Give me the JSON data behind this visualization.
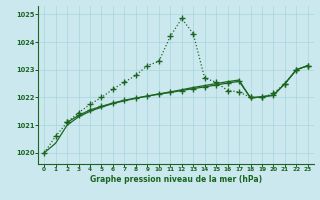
{
  "xlabel": "Graphe pression niveau de la mer (hPa)",
  "bg_color": "#cce8ef",
  "grid_color": "#a8d4dc",
  "line_color": "#1a6620",
  "x_ticks": [
    0,
    1,
    2,
    3,
    4,
    5,
    6,
    7,
    8,
    9,
    10,
    11,
    12,
    13,
    14,
    15,
    16,
    17,
    18,
    19,
    20,
    21,
    22,
    23
  ],
  "ylim": [
    1019.6,
    1025.3
  ],
  "yticks": [
    1020,
    1021,
    1022,
    1023,
    1024,
    1025
  ],
  "series1_x": [
    0,
    1,
    2,
    3,
    4,
    5,
    6,
    7,
    8,
    9,
    10,
    11,
    12,
    13,
    14,
    15,
    16,
    17,
    18,
    19,
    20,
    21,
    22,
    23
  ],
  "series1_y": [
    1020.0,
    1020.6,
    1021.1,
    1021.45,
    1021.75,
    1022.0,
    1022.3,
    1022.55,
    1022.8,
    1023.15,
    1023.3,
    1024.2,
    1024.85,
    1024.3,
    1022.7,
    1022.55,
    1022.25,
    1022.2,
    1022.0,
    1022.0,
    1022.15,
    1022.5,
    1023.0,
    1023.15
  ],
  "series2_x": [
    2,
    3,
    4,
    5,
    6,
    7,
    8,
    9,
    10,
    11,
    12,
    13,
    14,
    15,
    16,
    17,
    18,
    19,
    20,
    21,
    22,
    23
  ],
  "series2_y": [
    1021.1,
    1021.35,
    1021.55,
    1021.68,
    1021.8,
    1021.9,
    1021.98,
    1022.05,
    1022.12,
    1022.18,
    1022.25,
    1022.32,
    1022.38,
    1022.45,
    1022.52,
    1022.58,
    1022.0,
    1022.02,
    1022.08,
    1022.5,
    1023.0,
    1023.15
  ],
  "series3_x": [
    0,
    1,
    2,
    3,
    4,
    5,
    6,
    7,
    8,
    9,
    10,
    11,
    12,
    13,
    14,
    15,
    16,
    17,
    18,
    19,
    20,
    21,
    22,
    23
  ],
  "series3_y": [
    1020.0,
    1020.35,
    1021.0,
    1021.3,
    1021.5,
    1021.65,
    1021.78,
    1021.88,
    1021.97,
    1022.05,
    1022.13,
    1022.2,
    1022.28,
    1022.36,
    1022.43,
    1022.5,
    1022.57,
    1022.63,
    1021.97,
    1022.03,
    1022.08,
    1022.5,
    1023.0,
    1023.15
  ]
}
